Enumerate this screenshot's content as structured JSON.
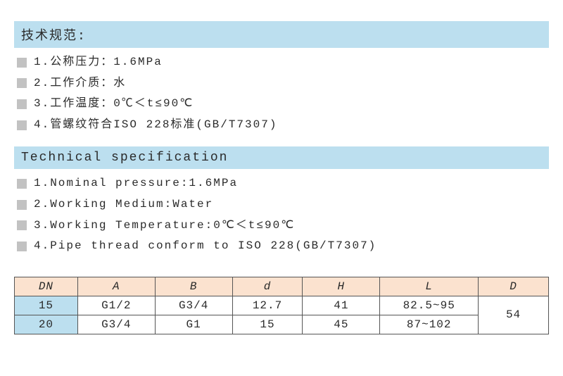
{
  "sections": {
    "cn": {
      "title": "技术规范:",
      "items": [
        "1.公称压力：1.6MPa",
        "2.工作介质：水",
        "3.工作温度：0℃＜t≤90℃",
        "4.管螺纹符合ISO 228标准(GB/T7307)"
      ]
    },
    "en": {
      "title": "Technical specification",
      "items": [
        "1.Nominal pressure:1.6MPa",
        "2.Working Medium:Water",
        "3.Working Temperature:0℃＜t≤90℃",
        "4.Pipe thread conform to ISO 228(GB/T7307)"
      ]
    }
  },
  "table": {
    "headers": [
      "DN",
      "A",
      "B",
      "d",
      "H",
      "L",
      "D"
    ],
    "rows": [
      {
        "dn": "15",
        "a": "G1/2",
        "b": "G3/4",
        "d": "12.7",
        "h": "41",
        "l": "82.5~95"
      },
      {
        "dn": "20",
        "a": "G3/4",
        "b": "G1",
        "d": "15",
        "h": "45",
        "l": "87~102"
      }
    ],
    "merged_D": "54"
  },
  "colors": {
    "header_bg": "#bcdfef",
    "bullet": "#c2c2c2",
    "th_bg": "#fbe2cf",
    "dn_bg": "#bcdfef",
    "border": "#555555",
    "text": "#2a2a2a"
  }
}
